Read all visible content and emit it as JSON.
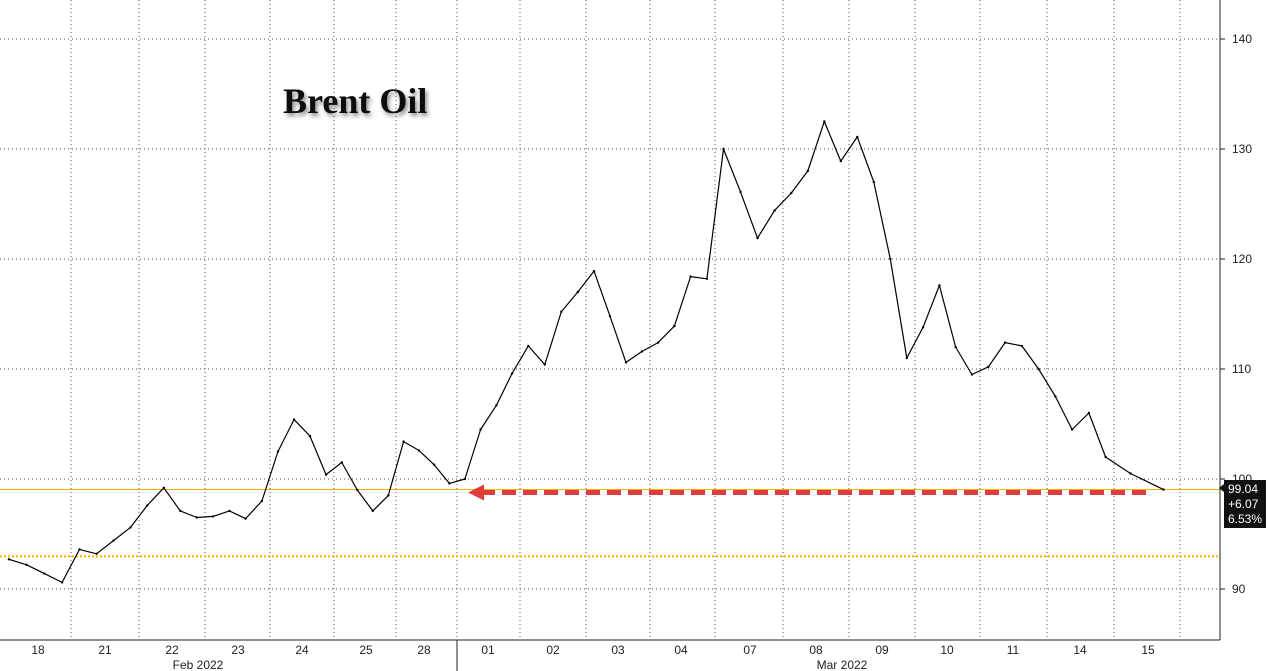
{
  "chart_data": {
    "type": "line",
    "title": "Brent Oil",
    "ylim": [
      85,
      143
    ],
    "y_ticks": [
      90,
      100,
      110,
      120,
      130,
      140
    ],
    "x_ticks": [
      "18",
      "21",
      "22",
      "23",
      "24",
      "25",
      "28",
      "01",
      "02",
      "03",
      "04",
      "07",
      "08",
      "09",
      "10",
      "11",
      "14",
      "15"
    ],
    "month_labels": [
      {
        "text": "Feb 2022",
        "at": "22"
      },
      {
        "text": "Mar 2022",
        "at": "08"
      }
    ],
    "grid": true,
    "axis_side": "right",
    "series": [
      {
        "color": "#000000",
        "points": [
          [
            "18",
            92.7
          ],
          [
            "18",
            92.2
          ],
          [
            "18",
            91.4
          ],
          [
            "18",
            90.6
          ],
          [
            "21",
            93.6
          ],
          [
            "21",
            93.2
          ],
          [
            "21",
            94.4
          ],
          [
            "21",
            95.6
          ],
          [
            "22",
            97.6
          ],
          [
            "22",
            99.2
          ],
          [
            "22",
            97.1
          ],
          [
            "22",
            96.5
          ],
          [
            "23",
            96.6
          ],
          [
            "23",
            97.1
          ],
          [
            "23",
            96.4
          ],
          [
            "23",
            98.0
          ],
          [
            "24",
            102.5
          ],
          [
            "24",
            105.4
          ],
          [
            "24",
            103.9
          ],
          [
            "24",
            100.4
          ],
          [
            "25",
            101.5
          ],
          [
            "25",
            99.0
          ],
          [
            "25",
            97.1
          ],
          [
            "25",
            98.5
          ],
          [
            "28",
            103.4
          ],
          [
            "28",
            102.6
          ],
          [
            "28",
            101.3
          ],
          [
            "28",
            99.6
          ],
          [
            "01",
            100.0
          ],
          [
            "01",
            104.5
          ],
          [
            "01",
            106.7
          ],
          [
            "01",
            109.6
          ],
          [
            "02",
            112.1
          ],
          [
            "02",
            110.4
          ],
          [
            "02",
            115.2
          ],
          [
            "02",
            117.0
          ],
          [
            "03",
            118.9
          ],
          [
            "03",
            114.8
          ],
          [
            "03",
            110.6
          ],
          [
            "03",
            111.6
          ],
          [
            "04",
            112.4
          ],
          [
            "04",
            113.9
          ],
          [
            "04",
            118.4
          ],
          [
            "04",
            118.2
          ],
          [
            "07",
            130.0
          ],
          [
            "07",
            126.1
          ],
          [
            "07",
            121.9
          ],
          [
            "07",
            124.4
          ],
          [
            "08",
            126.0
          ],
          [
            "08",
            128.0
          ],
          [
            "08",
            132.5
          ],
          [
            "08",
            128.9
          ],
          [
            "09",
            131.1
          ],
          [
            "09",
            127.0
          ],
          [
            "09",
            120.0
          ],
          [
            "09",
            111.0
          ],
          [
            "10",
            113.8
          ],
          [
            "10",
            117.6
          ],
          [
            "10",
            112.0
          ],
          [
            "10",
            109.5
          ],
          [
            "11",
            110.2
          ],
          [
            "11",
            112.4
          ],
          [
            "11",
            112.1
          ],
          [
            "11",
            110.0
          ],
          [
            "14",
            107.5
          ],
          [
            "14",
            104.5
          ],
          [
            "14",
            106.0
          ],
          [
            "14",
            102.0
          ],
          [
            "15",
            100.5
          ],
          [
            "15",
            99.04
          ]
        ]
      }
    ],
    "reference_lines": [
      {
        "value": 99.04,
        "color": "#f0b400",
        "style": "solid"
      },
      {
        "value": 92.97,
        "color": "#f0b400",
        "style": "dotted"
      }
    ],
    "arrow": {
      "from": "15",
      "to": "01",
      "value": 99.04,
      "color": "#e03c3c"
    },
    "last_value": {
      "price": "99.04",
      "change": "+6.07",
      "pct": "6.53%"
    }
  }
}
